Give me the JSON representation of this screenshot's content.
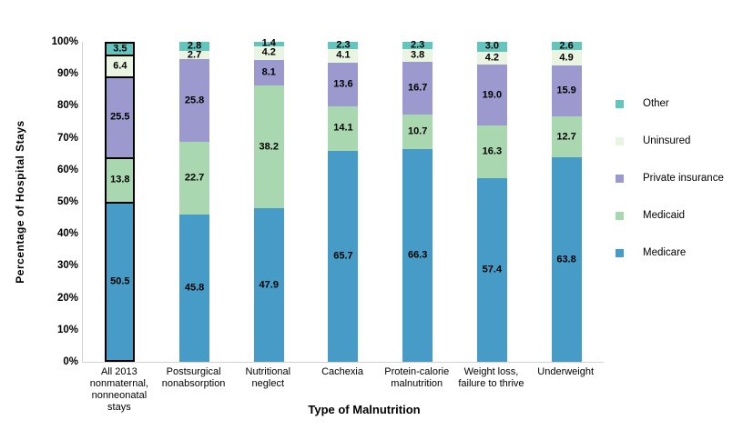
{
  "y_axis": {
    "label": "Percentage of Hospital Stays",
    "ticks": [
      "0%",
      "10%",
      "20%",
      "30%",
      "40%",
      "50%",
      "60%",
      "70%",
      "80%",
      "90%",
      "100%"
    ],
    "ylim": [
      0,
      100
    ]
  },
  "x_axis": {
    "label": "Type of Malnutrition"
  },
  "chart_data": {
    "type": "bar",
    "subtype": "stacked-100",
    "title": "",
    "xlabel": "Type of Malnutrition",
    "ylabel": "Percentage of Hospital Stays",
    "ylim": [
      0,
      100
    ],
    "grid": false,
    "legend_position": "right",
    "categories": [
      "All 2013\nnonmaternal,\nnonneonatal\nstays",
      "Postsurgical\nnonabsorption",
      "Nutritional\nneglect",
      "Cachexia",
      "Protein-calorie\nmalnutrition",
      "Weight loss,\nfailure to thrive",
      "Underweight"
    ],
    "outlined_category_index": 0,
    "series": [
      {
        "name": "Medicare",
        "color": "#469CC7",
        "values": [
          50.5,
          45.8,
          47.9,
          65.7,
          66.3,
          57.4,
          63.8
        ]
      },
      {
        "name": "Medicaid",
        "color": "#A9D8B0",
        "values": [
          13.8,
          22.7,
          38.2,
          14.1,
          10.7,
          16.3,
          12.7
        ]
      },
      {
        "name": "Private insurance",
        "color": "#9B99CE",
        "values": [
          25.5,
          25.8,
          8.1,
          13.6,
          16.7,
          19.0,
          15.9
        ]
      },
      {
        "name": "Uninsured",
        "color": "#EAF5E1",
        "values": [
          6.4,
          2.7,
          4.2,
          4.1,
          3.8,
          4.2,
          4.9
        ]
      },
      {
        "name": "Other",
        "color": "#63C5BE",
        "values": [
          3.5,
          2.8,
          1.4,
          2.3,
          2.3,
          3.0,
          2.6
        ]
      }
    ],
    "legend": [
      "Other",
      "Uninsured",
      "Private insurance",
      "Medicaid",
      "Medicare"
    ]
  }
}
